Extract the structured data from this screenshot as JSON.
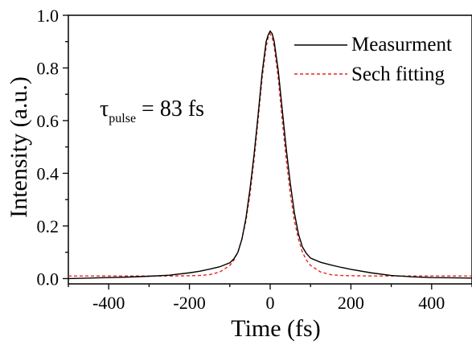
{
  "chart_data": {
    "type": "line",
    "xlabel": "Time (fs)",
    "ylabel": "Intensity (a.u.)",
    "xlim": [
      -500,
      500
    ],
    "ylim": [
      -0.02,
      1.0
    ],
    "xticks": [
      -400,
      -200,
      0,
      200,
      400
    ],
    "xtick_labels": [
      "-400",
      "-200",
      "0",
      "200",
      "400"
    ],
    "yticks": [
      0.0,
      0.2,
      0.4,
      0.6,
      0.8,
      1.0
    ],
    "ytick_labels": [
      "0.0",
      "0.2",
      "0.4",
      "0.6",
      "0.8",
      "1.0"
    ],
    "grid": false,
    "legend_position": "top-right",
    "annotation": {
      "symbol": "τ",
      "subscript": "pulse",
      "text": " = 83 fs"
    },
    "series": [
      {
        "name": "Measurment",
        "color": "#000000",
        "dash": "solid",
        "x": [
          -500,
          -450,
          -400,
          -350,
          -300,
          -250,
          -200,
          -175,
          -150,
          -125,
          -100,
          -90,
          -80,
          -70,
          -60,
          -50,
          -40,
          -30,
          -20,
          -10,
          -5,
          0,
          5,
          10,
          20,
          30,
          40,
          50,
          60,
          70,
          80,
          90,
          100,
          125,
          150,
          175,
          200,
          250,
          300,
          350,
          400,
          450,
          500
        ],
        "y": [
          0.0,
          0.002,
          0.004,
          0.006,
          0.009,
          0.013,
          0.022,
          0.028,
          0.036,
          0.045,
          0.06,
          0.075,
          0.1,
          0.15,
          0.23,
          0.34,
          0.47,
          0.62,
          0.78,
          0.9,
          0.925,
          0.94,
          0.93,
          0.9,
          0.79,
          0.64,
          0.49,
          0.36,
          0.25,
          0.17,
          0.12,
          0.095,
          0.078,
          0.062,
          0.052,
          0.043,
          0.035,
          0.022,
          0.012,
          0.007,
          0.004,
          0.003,
          0.002
        ]
      },
      {
        "name": "Sech fitting",
        "color": "#e8251f",
        "dash": "dashed",
        "x": [
          -500,
          -450,
          -400,
          -350,
          -300,
          -250,
          -200,
          -175,
          -150,
          -125,
          -100,
          -90,
          -80,
          -70,
          -60,
          -50,
          -40,
          -30,
          -20,
          -10,
          -5,
          0,
          5,
          10,
          20,
          30,
          40,
          50,
          60,
          70,
          80,
          90,
          100,
          125,
          150,
          175,
          200,
          250,
          300,
          350,
          400,
          450,
          500
        ],
        "y": [
          0.01,
          0.01,
          0.01,
          0.01,
          0.01,
          0.01,
          0.011,
          0.012,
          0.015,
          0.025,
          0.05,
          0.07,
          0.1,
          0.15,
          0.22,
          0.32,
          0.45,
          0.6,
          0.76,
          0.88,
          0.915,
          0.93,
          0.915,
          0.88,
          0.76,
          0.6,
          0.45,
          0.32,
          0.22,
          0.15,
          0.1,
          0.07,
          0.05,
          0.025,
          0.015,
          0.012,
          0.011,
          0.01,
          0.01,
          0.01,
          0.01,
          0.01,
          0.01
        ]
      }
    ]
  }
}
